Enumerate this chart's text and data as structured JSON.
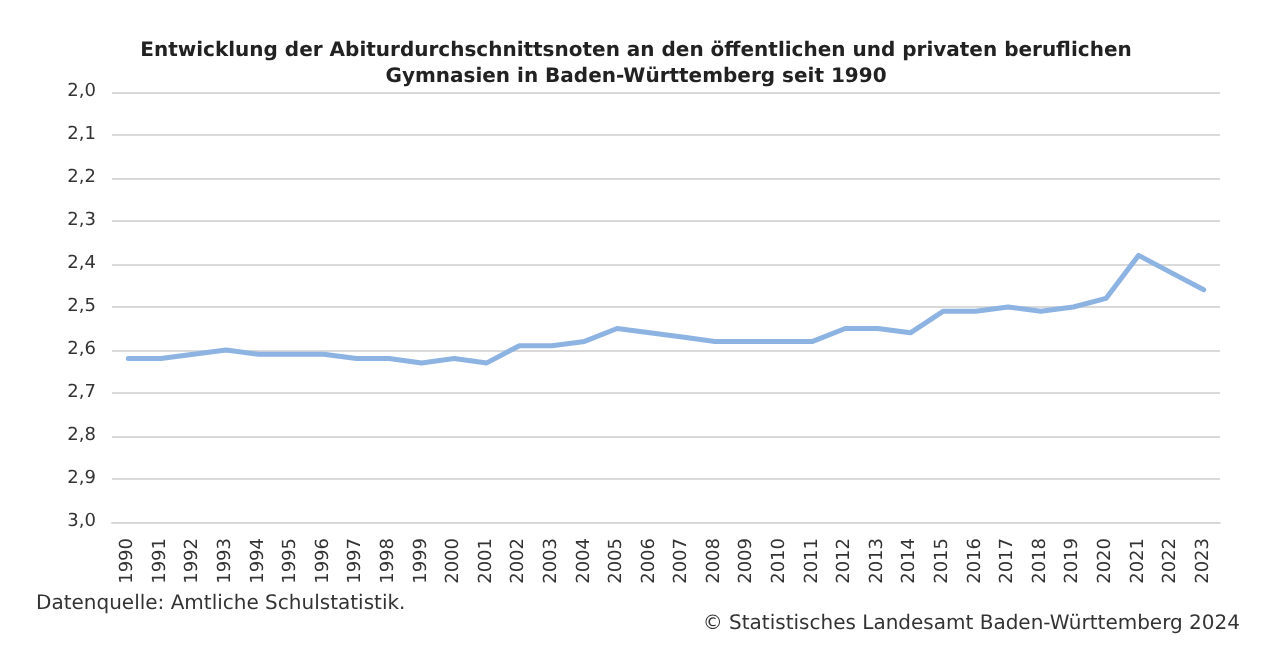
{
  "chart_data": {
    "type": "line",
    "title": "Entwicklung der Abiturdurchschnittsnoten an den öffentlichen und privaten beruflichen\nGymnasien in Baden-Württemberg seit 1990",
    "categories": [
      "1990",
      "1991",
      "1992",
      "1993",
      "1994",
      "1995",
      "1996",
      "1997",
      "1998",
      "1999",
      "2000",
      "2001",
      "2002",
      "2003",
      "2004",
      "2005",
      "2006",
      "2007",
      "2008",
      "2009",
      "2010",
      "2011",
      "2012",
      "2013",
      "2014",
      "2015",
      "2016",
      "2017",
      "2018",
      "2019",
      "2020",
      "2021",
      "2022",
      "2023"
    ],
    "series": [
      {
        "color": "#8db3e2",
        "values": [
          2.62,
          2.62,
          2.61,
          2.6,
          2.61,
          2.61,
          2.61,
          2.62,
          2.62,
          2.63,
          2.62,
          2.63,
          2.59,
          2.59,
          2.58,
          2.55,
          2.56,
          2.57,
          2.58,
          2.58,
          2.58,
          2.58,
          2.55,
          2.55,
          2.56,
          2.51,
          2.51,
          2.5,
          2.51,
          2.5,
          2.48,
          2.38,
          2.42,
          2.46
        ]
      }
    ],
    "ylim": [
      3.0,
      2.0
    ],
    "yticks": [
      {
        "value": 2.0,
        "label": "2,0"
      },
      {
        "value": 2.1,
        "label": "2,1"
      },
      {
        "value": 2.2,
        "label": "2,2"
      },
      {
        "value": 2.3,
        "label": "2,3"
      },
      {
        "value": 2.4,
        "label": "2,4"
      },
      {
        "value": 2.5,
        "label": "2,5"
      },
      {
        "value": 2.6,
        "label": "2,6"
      },
      {
        "value": 2.7,
        "label": "2,7"
      },
      {
        "value": 2.8,
        "label": "2,8"
      },
      {
        "value": 2.9,
        "label": "2,9"
      },
      {
        "value": 3.0,
        "label": "3,0"
      }
    ],
    "grid": "y",
    "marker": "none",
    "line_style": "solid",
    "annotations": [
      "Datenquelle: Amtliche Schulstatistik.",
      "© Statistisches Landesamt Baden-Württemberg 2024"
    ]
  }
}
